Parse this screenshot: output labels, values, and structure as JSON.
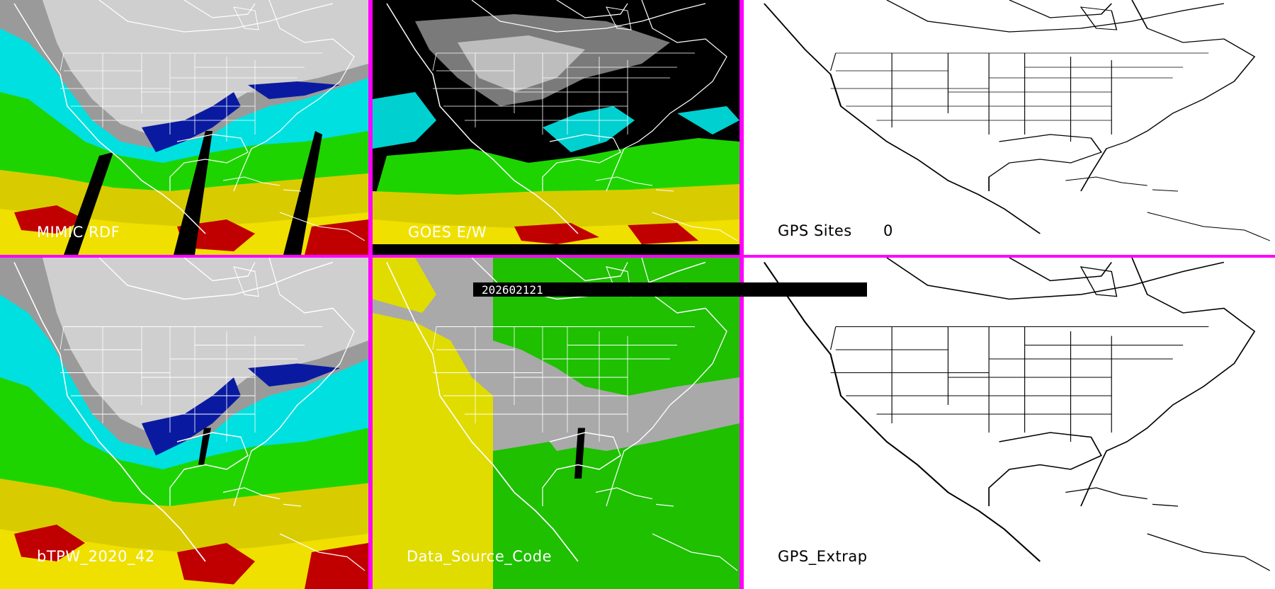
{
  "colors": {
    "separator": "#ff00ff"
  },
  "panels": {
    "mimic": {
      "label": "MIMIC RDF"
    },
    "goes": {
      "label": "GOES E/W"
    },
    "gps_sites": {
      "label": "GPS Sites",
      "count": "0"
    },
    "btpw": {
      "label": "bTPW_2020_42"
    },
    "dsc": {
      "label": "Data_Source_Code"
    },
    "gps_extrap": {
      "label": "GPS_Extrap"
    }
  },
  "timestamp": "202602121"
}
